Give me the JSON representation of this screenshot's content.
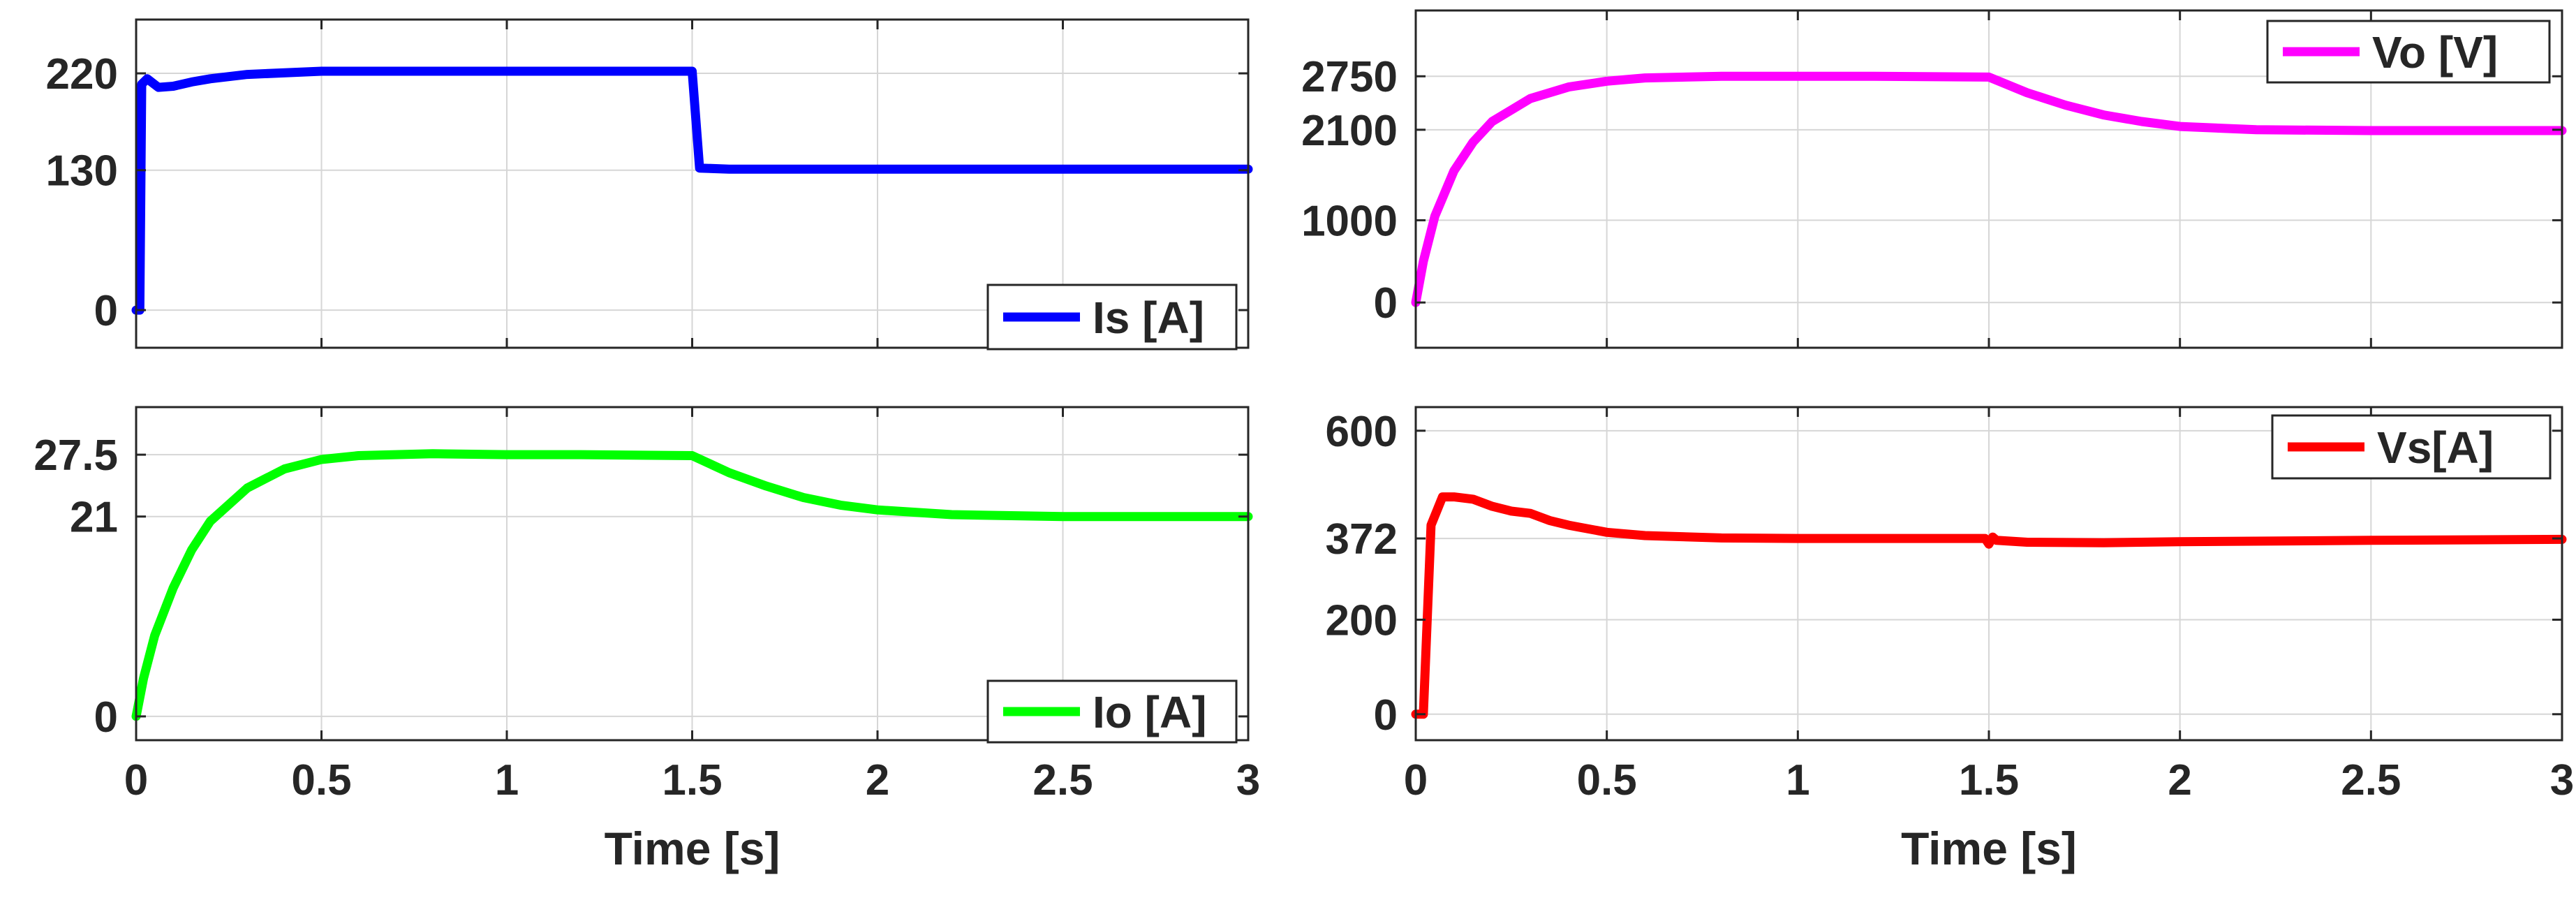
{
  "chart_data": [
    {
      "id": "is",
      "type": "line",
      "xlim": [
        0,
        3
      ],
      "ylim": [
        -35,
        270
      ],
      "yticks": [
        0,
        130,
        220
      ],
      "ytick_labels": [
        "0",
        "130",
        "220"
      ],
      "xticks": [
        0,
        0.5,
        1,
        1.5,
        2,
        2.5,
        3
      ],
      "xtick_labels": [],
      "xlabel": "",
      "grid": true,
      "legend_position": "bottom-right",
      "series": [
        {
          "name": "Is [A]",
          "color": "#0000ff",
          "x": [
            0,
            0.01,
            0.015,
            0.03,
            0.06,
            0.1,
            0.15,
            0.2,
            0.3,
            0.5,
            0.8,
            1.0,
            1.2,
            1.49,
            1.5,
            1.52,
            1.6,
            2.0,
            2.5,
            3.0
          ],
          "y": [
            0,
            0,
            210,
            215,
            207,
            208,
            212,
            215,
            219,
            222,
            222,
            222,
            222,
            222,
            222,
            132,
            131,
            131,
            131,
            131
          ]
        }
      ]
    },
    {
      "id": "vo",
      "type": "line",
      "xlim": [
        0,
        3
      ],
      "ylim": [
        -550,
        3550
      ],
      "yticks": [
        0,
        1000,
        2100,
        2750
      ],
      "ytick_labels": [
        "0",
        "1000",
        "2100",
        "2750"
      ],
      "xticks": [
        0,
        0.5,
        1,
        1.5,
        2,
        2.5,
        3
      ],
      "xtick_labels": [],
      "xlabel": "",
      "grid": true,
      "legend_position": "top-right",
      "series": [
        {
          "name": "Vo [V]",
          "color": "#ff00ff",
          "x": [
            0,
            0.02,
            0.05,
            0.1,
            0.15,
            0.2,
            0.3,
            0.4,
            0.5,
            0.6,
            0.8,
            1.0,
            1.2,
            1.5,
            1.6,
            1.7,
            1.8,
            1.9,
            2.0,
            2.2,
            2.5,
            3.0
          ],
          "y": [
            0,
            500,
            1050,
            1600,
            1950,
            2200,
            2480,
            2620,
            2690,
            2730,
            2750,
            2750,
            2750,
            2740,
            2550,
            2400,
            2280,
            2200,
            2140,
            2100,
            2090,
            2090
          ]
        }
      ]
    },
    {
      "id": "io",
      "type": "line",
      "xlim": [
        0,
        3
      ],
      "ylim": [
        -2.5,
        32.5
      ],
      "yticks": [
        0,
        21,
        27.5
      ],
      "ytick_labels": [
        "0",
        "21",
        "27.5"
      ],
      "xticks": [
        0,
        0.5,
        1,
        1.5,
        2,
        2.5,
        3
      ],
      "xtick_labels": [
        "0",
        "0.5",
        "1",
        "1.5",
        "2",
        "2.5",
        "3"
      ],
      "xlabel": "Time [s]",
      "grid": true,
      "legend_position": "bottom-right",
      "series": [
        {
          "name": "Io [A]",
          "color": "#00ff00",
          "x": [
            0,
            0.02,
            0.05,
            0.1,
            0.15,
            0.2,
            0.3,
            0.4,
            0.5,
            0.6,
            0.8,
            1.0,
            1.2,
            1.5,
            1.6,
            1.7,
            1.8,
            1.9,
            2.0,
            2.2,
            2.5,
            3.0
          ],
          "y": [
            0,
            4,
            8.5,
            13.5,
            17.5,
            20.5,
            24,
            26,
            27,
            27.4,
            27.6,
            27.5,
            27.5,
            27.4,
            25.6,
            24.2,
            23,
            22.2,
            21.7,
            21.2,
            21,
            21
          ]
        }
      ]
    },
    {
      "id": "vs",
      "type": "line",
      "xlim": [
        0,
        3
      ],
      "ylim": [
        -55,
        650
      ],
      "yticks": [
        0,
        200,
        372,
        600
      ],
      "ytick_labels": [
        "0",
        "200",
        "372",
        "600"
      ],
      "xticks": [
        0,
        0.5,
        1,
        1.5,
        2,
        2.5,
        3
      ],
      "xtick_labels": [
        "0",
        "0.5",
        "1",
        "1.5",
        "2",
        "2.5",
        "3"
      ],
      "xlabel": "Time [s]",
      "grid": true,
      "legend_position": "top-right",
      "series": [
        {
          "name": "Vs[A]",
          "color": "#ff0000",
          "x": [
            0,
            0.02,
            0.04,
            0.07,
            0.1,
            0.15,
            0.2,
            0.25,
            0.3,
            0.35,
            0.4,
            0.5,
            0.6,
            0.8,
            1.0,
            1.2,
            1.49,
            1.5,
            1.51,
            1.52,
            1.6,
            1.8,
            2.0,
            2.5,
            3.0
          ],
          "y": [
            0,
            0,
            400,
            460,
            460,
            455,
            440,
            430,
            425,
            410,
            400,
            385,
            378,
            373,
            372,
            372,
            372,
            360,
            375,
            368,
            364,
            363,
            365,
            368,
            370
          ]
        }
      ]
    }
  ]
}
